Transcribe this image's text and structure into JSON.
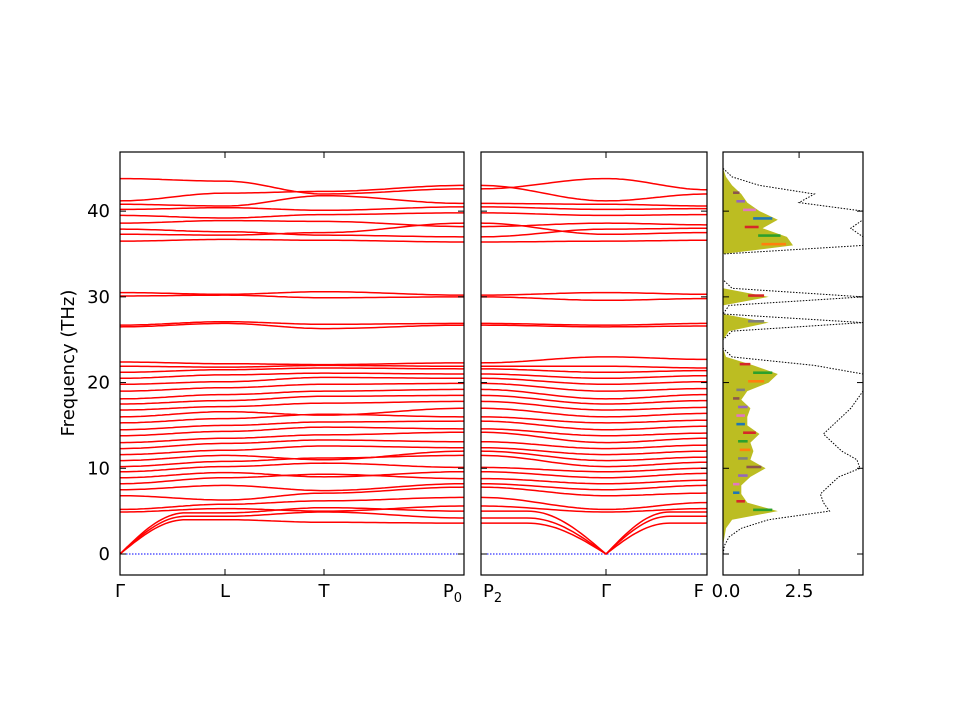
{
  "chart_data": {
    "type": "line",
    "ylabel": "Frequency (THz)",
    "ylim": [
      -2.45,
      46.9
    ],
    "yticks": [
      0,
      10,
      20,
      30,
      40
    ],
    "band_color": "#ff0000",
    "zero_line_color": "#0000ff",
    "panels": [
      {
        "kpoints": [
          "Γ",
          "L",
          "T",
          "P0"
        ],
        "bands": [
          [
            0,
            4.4,
            4.9,
            4.2
          ],
          [
            0,
            4.0,
            3.7,
            3.6
          ],
          [
            0,
            4.8,
            5.4,
            5.0
          ],
          [
            4.9,
            5.3,
            5.0,
            5.6
          ],
          [
            5.2,
            5.8,
            6.2,
            6.6
          ],
          [
            6.8,
            6.3,
            7.1,
            7.8
          ],
          [
            7.5,
            8.0,
            7.4,
            8.2
          ],
          [
            8.2,
            8.9,
            9.3,
            8.8
          ],
          [
            8.9,
            9.5,
            9.0,
            9.6
          ],
          [
            9.6,
            10.2,
            10.6,
            10.1
          ],
          [
            10.2,
            10.8,
            11.2,
            11.5
          ],
          [
            10.9,
            11.5,
            11.0,
            12.0
          ],
          [
            11.6,
            12.1,
            12.6,
            12.4
          ],
          [
            12.3,
            12.9,
            13.3,
            13.1
          ],
          [
            13.0,
            13.5,
            13.9,
            14.2
          ],
          [
            13.8,
            14.3,
            14.8,
            14.6
          ],
          [
            14.5,
            15.0,
            15.4,
            15.5
          ],
          [
            15.3,
            15.8,
            16.3,
            16.0
          ],
          [
            16.0,
            16.6,
            16.2,
            17.0
          ],
          [
            16.8,
            17.2,
            17.6,
            17.8
          ],
          [
            17.5,
            17.9,
            18.4,
            18.5
          ],
          [
            18.1,
            18.6,
            19.0,
            19.2
          ],
          [
            19.0,
            19.4,
            19.8,
            19.9
          ],
          [
            19.8,
            20.1,
            20.6,
            20.5
          ],
          [
            20.5,
            20.9,
            21.1,
            21.0
          ],
          [
            21.2,
            21.5,
            21.7,
            21.6
          ],
          [
            21.9,
            21.8,
            22.0,
            21.9
          ],
          [
            22.4,
            22.2,
            22.1,
            22.3
          ],
          [
            26.5,
            26.9,
            26.3,
            26.7
          ],
          [
            26.7,
            27.1,
            26.8,
            26.9
          ],
          [
            30.1,
            30.2,
            29.9,
            30.0
          ],
          [
            30.5,
            30.3,
            30.6,
            30.2
          ],
          [
            36.5,
            36.7,
            36.6,
            36.4
          ],
          [
            37.3,
            37.2,
            37.5,
            38.6
          ],
          [
            37.9,
            37.6,
            37.2,
            37.0
          ],
          [
            38.6,
            38.9,
            38.8,
            38.2
          ],
          [
            39.5,
            39.2,
            39.6,
            39.8
          ],
          [
            40.2,
            40.4,
            40.1,
            40.5
          ],
          [
            40.8,
            40.6,
            41.8,
            40.9
          ],
          [
            41.2,
            42.1,
            42.3,
            43.0
          ],
          [
            43.8,
            43.5,
            42.0,
            42.6
          ]
        ]
      },
      {
        "kpoints": [
          "P2",
          "Γ",
          "F"
        ],
        "bands": [
          [
            4.2,
            0,
            3.6
          ],
          [
            3.6,
            0,
            4.4
          ],
          [
            5.0,
            0,
            4.9
          ],
          [
            5.6,
            4.9,
            5.3
          ],
          [
            6.6,
            5.2,
            6.0
          ],
          [
            7.8,
            6.8,
            7.1
          ],
          [
            8.2,
            7.5,
            8.0
          ],
          [
            8.8,
            8.2,
            8.6
          ],
          [
            9.6,
            8.9,
            9.4
          ],
          [
            10.1,
            9.6,
            10.0
          ],
          [
            11.5,
            10.2,
            10.7
          ],
          [
            12.0,
            10.9,
            11.3
          ],
          [
            12.4,
            11.6,
            12.0
          ],
          [
            13.1,
            12.3,
            12.7
          ],
          [
            14.2,
            13.0,
            13.5
          ],
          [
            14.6,
            13.8,
            14.1
          ],
          [
            15.5,
            14.5,
            14.9
          ],
          [
            16.0,
            15.3,
            15.6
          ],
          [
            17.0,
            16.0,
            16.4
          ],
          [
            17.8,
            16.8,
            17.1
          ],
          [
            18.5,
            17.5,
            17.9
          ],
          [
            19.2,
            18.1,
            18.6
          ],
          [
            19.9,
            19.0,
            19.3
          ],
          [
            20.5,
            19.8,
            20.1
          ],
          [
            21.0,
            20.5,
            20.8
          ],
          [
            21.6,
            21.2,
            21.4
          ],
          [
            21.9,
            21.9,
            21.7
          ],
          [
            22.3,
            23.0,
            22.7
          ],
          [
            26.7,
            26.5,
            26.6
          ],
          [
            26.9,
            26.7,
            26.9
          ],
          [
            30.0,
            29.6,
            29.8
          ],
          [
            30.2,
            30.5,
            30.3
          ],
          [
            36.4,
            36.5,
            36.6
          ],
          [
            38.6,
            37.3,
            37.5
          ],
          [
            37.0,
            37.9,
            38.0
          ],
          [
            38.2,
            38.6,
            38.4
          ],
          [
            39.8,
            39.5,
            39.6
          ],
          [
            40.5,
            40.2,
            40.3
          ],
          [
            40.9,
            40.8,
            40.6
          ],
          [
            43.0,
            41.2,
            42.0
          ],
          [
            42.6,
            43.8,
            42.5
          ]
        ]
      }
    ],
    "dos": {
      "xlim": [
        0,
        4.6
      ],
      "xticks": [
        0.0,
        2.5
      ],
      "xticklabels": [
        "0.0",
        "2.5"
      ],
      "total_color": "#000000",
      "partial_colors": [
        "#bcbd22",
        "#e377c2",
        "#9467bd",
        "#8c564b",
        "#7f7f7f",
        "#ff7f0e",
        "#2ca02c",
        "#d62728",
        "#1f77b4"
      ],
      "frequency": [
        0,
        1,
        2,
        3,
        4,
        5,
        6,
        7,
        8,
        9,
        10,
        11,
        12,
        13,
        14,
        15,
        16,
        17,
        18,
        19,
        20,
        21,
        22,
        23,
        24,
        25,
        26,
        27,
        28,
        29,
        30,
        31,
        32,
        33,
        34,
        35,
        36,
        37,
        38,
        39,
        40,
        41,
        42,
        43,
        44,
        45
      ],
      "total": [
        0,
        0.05,
        0.2,
        0.6,
        1.5,
        3.5,
        3.3,
        3.2,
        3.5,
        3.8,
        4.5,
        4.4,
        3.9,
        3.6,
        3.3,
        3.6,
        3.9,
        4.2,
        4.4,
        4.6,
        4.6,
        4.6,
        3.0,
        0.3,
        0,
        0,
        0.3,
        4.6,
        0,
        0.2,
        4.6,
        0.3,
        0,
        0,
        0,
        0,
        4.6,
        4.6,
        4.2,
        4.6,
        4.6,
        2.5,
        3.0,
        1.2,
        0.3,
        0
      ],
      "partial": [
        0,
        0,
        0.05,
        0.1,
        0.3,
        1.8,
        0.8,
        0.6,
        0.6,
        0.9,
        1.4,
        0.9,
        1.0,
        0.9,
        1.2,
        0.8,
        0.8,
        0.9,
        0.6,
        0.8,
        1.5,
        1.8,
        1.0,
        0.1,
        0,
        0,
        0.2,
        1.5,
        0,
        0,
        1.5,
        0,
        0,
        0,
        0,
        0,
        2.3,
        2.1,
        1.3,
        1.8,
        1.2,
        0.8,
        0.6,
        0.3,
        0.1,
        0
      ]
    }
  }
}
